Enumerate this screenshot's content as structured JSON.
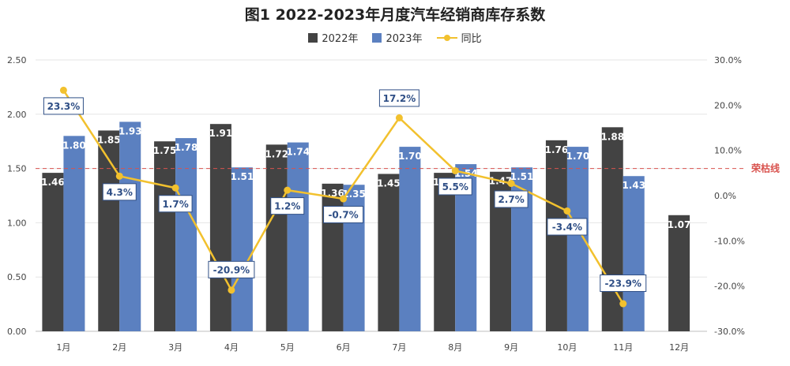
{
  "chart_data": {
    "type": "bar",
    "title": "图1  2022-2023年月度汽车经销商库存系数",
    "categories": [
      "1月",
      "2月",
      "3月",
      "4月",
      "5月",
      "6月",
      "7月",
      "8月",
      "9月",
      "10月",
      "11月",
      "12月"
    ],
    "series": [
      {
        "name": "2022年",
        "type": "bar",
        "axis": "left",
        "color": "#434343",
        "values": [
          1.46,
          1.85,
          1.75,
          1.91,
          1.72,
          1.36,
          1.45,
          1.46,
          1.47,
          1.76,
          1.88,
          1.07
        ]
      },
      {
        "name": "2023年",
        "type": "bar",
        "axis": "left",
        "color": "#5b80c0",
        "values": [
          1.8,
          1.93,
          1.78,
          1.51,
          1.74,
          1.35,
          1.7,
          1.54,
          1.51,
          1.7,
          1.43,
          null
        ]
      },
      {
        "name": "同比",
        "type": "line",
        "axis": "right",
        "color": "#f2c12e",
        "values": [
          23.3,
          4.3,
          1.7,
          -20.9,
          1.2,
          -0.7,
          17.2,
          5.5,
          2.7,
          -3.4,
          -23.9,
          null
        ],
        "labels": [
          "23.3%",
          "4.3%",
          "1.7%",
          "-20.9%",
          "1.2%",
          "-0.7%",
          "17.2%",
          "5.5%",
          "2.7%",
          "-3.4%",
          "-23.9%",
          ""
        ]
      }
    ],
    "y_left": {
      "ylim": [
        0,
        2.5
      ],
      "ticks": [
        "0.00",
        "0.50",
        "1.00",
        "1.50",
        "2.00",
        "2.50"
      ]
    },
    "y_right": {
      "ylim": [
        -30,
        30
      ],
      "ticks": [
        "-30.0%",
        "-20.0%",
        "-10.0%",
        "0.0%",
        "10.0%",
        "20.0%",
        "30.0%"
      ]
    },
    "reference_line": {
      "value": 1.5,
      "axis": "left",
      "label": "荣枯线",
      "color": "#d9534f"
    },
    "legend": {
      "position": "top-center"
    },
    "grid": true
  }
}
